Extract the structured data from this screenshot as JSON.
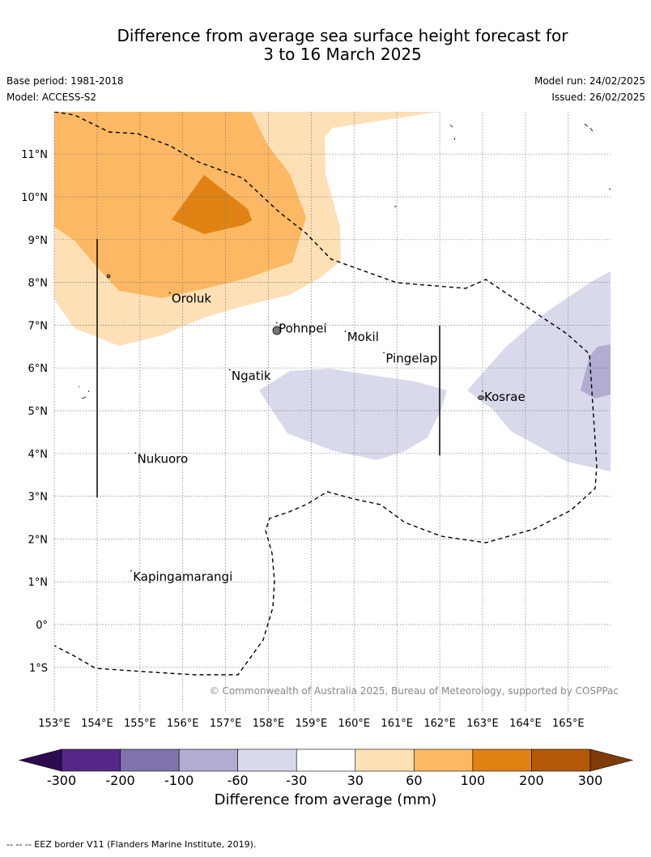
{
  "header": {
    "title_line1": "Difference from average sea surface height forecast for",
    "title_line2": "3 to 16 March 2025",
    "base_period": "Base period: 1981-2018",
    "model": "Model: ACCESS-S2",
    "model_run": "Model run: 24/02/2025",
    "issued": "Issued: 26/02/2025"
  },
  "map": {
    "lon_range": [
      153,
      166
    ],
    "lat_range": [
      -2,
      12
    ],
    "lon_ticks": [
      "153°E",
      "154°E",
      "155°E",
      "156°E",
      "157°E",
      "158°E",
      "159°E",
      "160°E",
      "161°E",
      "162°E",
      "163°E",
      "164°E",
      "165°E"
    ],
    "lat_ticks": [
      "1°S",
      "0°",
      "1°N",
      "2°N",
      "3°N",
      "4°N",
      "5°N",
      "6°N",
      "7°N",
      "8°N",
      "9°N",
      "10°N",
      "11°N"
    ],
    "places": [
      {
        "name": "Oroluk",
        "lon": 155.7,
        "lat": 7.6
      },
      {
        "name": "Pohnpei",
        "lon": 158.2,
        "lat": 6.9
      },
      {
        "name": "Mokil",
        "lon": 159.8,
        "lat": 6.7
      },
      {
        "name": "Pingelap",
        "lon": 160.7,
        "lat": 6.2
      },
      {
        "name": "Ngatik",
        "lon": 157.1,
        "lat": 5.8
      },
      {
        "name": "Kosrae",
        "lon": 163.0,
        "lat": 5.3
      },
      {
        "name": "Nukuoro",
        "lon": 154.9,
        "lat": 3.85
      },
      {
        "name": "Kapingamarangi",
        "lon": 154.8,
        "lat": 1.1
      }
    ],
    "copyright": "© Commonwealth of Australia 2025, Bureau of Meteorology, supported by COSPPac",
    "colors": {
      "n300": "#2d0a4e",
      "n200": "#542788",
      "n100": "#8073ac",
      "n60": "#b2abd2",
      "n30": "#d8daeb",
      "zero": "#ffffff",
      "p30": "#fee0b6",
      "p60": "#fdb863",
      "p100": "#e08214",
      "p200": "#b35806",
      "p300": "#7f3b08"
    }
  },
  "colorbar": {
    "title": "Difference from average (mm)",
    "tick_labels": [
      "-300",
      "-200",
      "-100",
      "-60",
      "-30",
      "30",
      "60",
      "100",
      "200",
      "300"
    ]
  },
  "footer": {
    "eez_legend": "--  --  -- EEZ border V11 (Flanders Marine Institute, 2019)."
  }
}
